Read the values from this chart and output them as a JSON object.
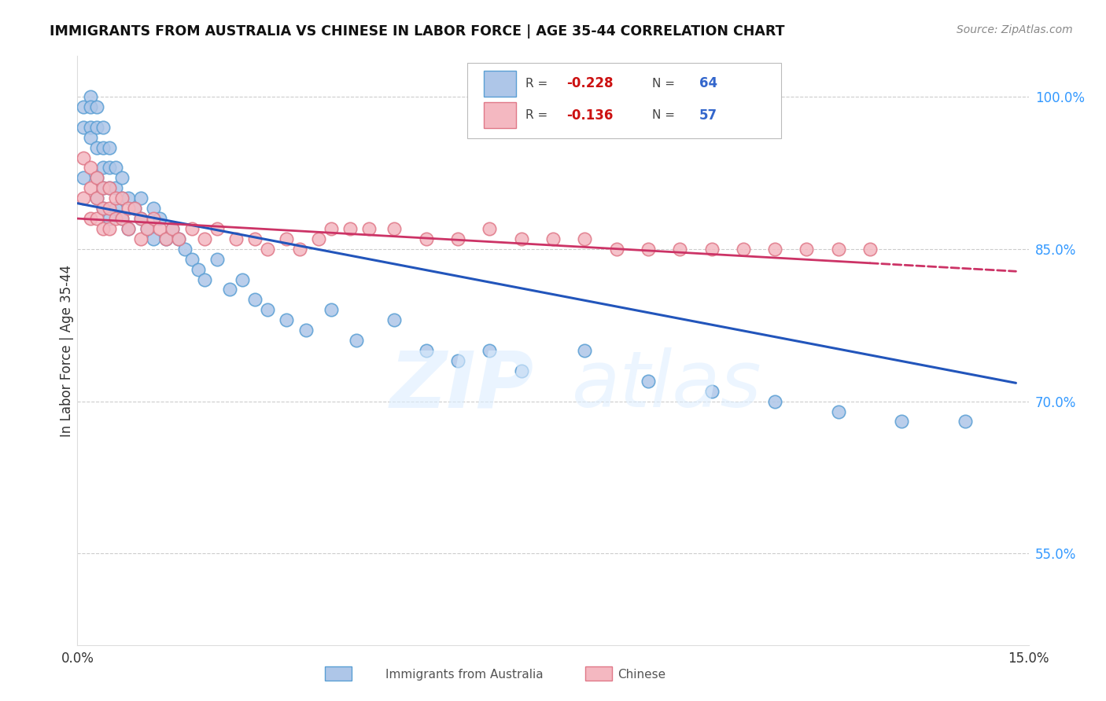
{
  "title": "IMMIGRANTS FROM AUSTRALIA VS CHINESE IN LABOR FORCE | AGE 35-44 CORRELATION CHART",
  "source": "Source: ZipAtlas.com",
  "ylabel": "In Labor Force | Age 35-44",
  "xlim": [
    0.0,
    0.15
  ],
  "ylim": [
    0.46,
    1.04
  ],
  "xtick_vals": [
    0.0,
    0.03,
    0.06,
    0.09,
    0.12,
    0.15
  ],
  "xtick_labels": [
    "0.0%",
    "",
    "",
    "",
    "",
    "15.0%"
  ],
  "ytick_vals_right": [
    0.55,
    0.7,
    0.85,
    1.0
  ],
  "ytick_labels_right": [
    "55.0%",
    "70.0%",
    "85.0%",
    "100.0%"
  ],
  "australia_color": "#aec6e8",
  "australia_edge": "#5a9fd4",
  "chinese_color": "#f4b8c1",
  "chinese_edge": "#e07888",
  "trend_australia_color": "#2255bb",
  "trend_chinese_color": "#cc3366",
  "australia_x": [
    0.001,
    0.001,
    0.001,
    0.002,
    0.002,
    0.002,
    0.002,
    0.003,
    0.003,
    0.003,
    0.003,
    0.003,
    0.004,
    0.004,
    0.004,
    0.004,
    0.004,
    0.005,
    0.005,
    0.005,
    0.005,
    0.006,
    0.006,
    0.006,
    0.007,
    0.007,
    0.007,
    0.008,
    0.008,
    0.009,
    0.01,
    0.01,
    0.011,
    0.012,
    0.012,
    0.013,
    0.014,
    0.015,
    0.016,
    0.017,
    0.018,
    0.019,
    0.02,
    0.022,
    0.024,
    0.026,
    0.028,
    0.03,
    0.033,
    0.036,
    0.04,
    0.044,
    0.05,
    0.055,
    0.06,
    0.065,
    0.07,
    0.08,
    0.09,
    0.1,
    0.11,
    0.12,
    0.13,
    0.14
  ],
  "australia_y": [
    0.99,
    0.97,
    0.92,
    1.0,
    0.99,
    0.97,
    0.96,
    0.99,
    0.97,
    0.95,
    0.92,
    0.9,
    0.97,
    0.95,
    0.93,
    0.91,
    0.89,
    0.95,
    0.93,
    0.91,
    0.88,
    0.93,
    0.91,
    0.89,
    0.92,
    0.9,
    0.88,
    0.9,
    0.87,
    0.89,
    0.9,
    0.88,
    0.87,
    0.89,
    0.86,
    0.88,
    0.86,
    0.87,
    0.86,
    0.85,
    0.84,
    0.83,
    0.82,
    0.84,
    0.81,
    0.82,
    0.8,
    0.79,
    0.78,
    0.77,
    0.79,
    0.76,
    0.78,
    0.75,
    0.74,
    0.75,
    0.73,
    0.75,
    0.72,
    0.71,
    0.7,
    0.69,
    0.68,
    0.68
  ],
  "chinese_x": [
    0.001,
    0.001,
    0.002,
    0.002,
    0.002,
    0.003,
    0.003,
    0.003,
    0.004,
    0.004,
    0.004,
    0.005,
    0.005,
    0.005,
    0.006,
    0.006,
    0.007,
    0.007,
    0.008,
    0.008,
    0.009,
    0.01,
    0.01,
    0.011,
    0.012,
    0.013,
    0.014,
    0.015,
    0.016,
    0.018,
    0.02,
    0.022,
    0.025,
    0.028,
    0.03,
    0.033,
    0.035,
    0.038,
    0.04,
    0.043,
    0.046,
    0.05,
    0.055,
    0.06,
    0.065,
    0.07,
    0.075,
    0.08,
    0.085,
    0.09,
    0.095,
    0.1,
    0.105,
    0.11,
    0.115,
    0.12,
    0.125
  ],
  "chinese_y": [
    0.94,
    0.9,
    0.93,
    0.91,
    0.88,
    0.92,
    0.9,
    0.88,
    0.91,
    0.89,
    0.87,
    0.91,
    0.89,
    0.87,
    0.9,
    0.88,
    0.9,
    0.88,
    0.89,
    0.87,
    0.89,
    0.88,
    0.86,
    0.87,
    0.88,
    0.87,
    0.86,
    0.87,
    0.86,
    0.87,
    0.86,
    0.87,
    0.86,
    0.86,
    0.85,
    0.86,
    0.85,
    0.86,
    0.87,
    0.87,
    0.87,
    0.87,
    0.86,
    0.86,
    0.87,
    0.86,
    0.86,
    0.86,
    0.85,
    0.85,
    0.85,
    0.85,
    0.85,
    0.85,
    0.85,
    0.85,
    0.85
  ],
  "trend_aus_x0": 0.0,
  "trend_aus_x1": 0.148,
  "trend_aus_y0": 0.895,
  "trend_aus_y1": 0.718,
  "trend_chi_x0": 0.0,
  "trend_chi_x1": 0.148,
  "trend_chi_y0": 0.88,
  "trend_chi_y1": 0.828,
  "trend_chi_solid_end": 0.125
}
